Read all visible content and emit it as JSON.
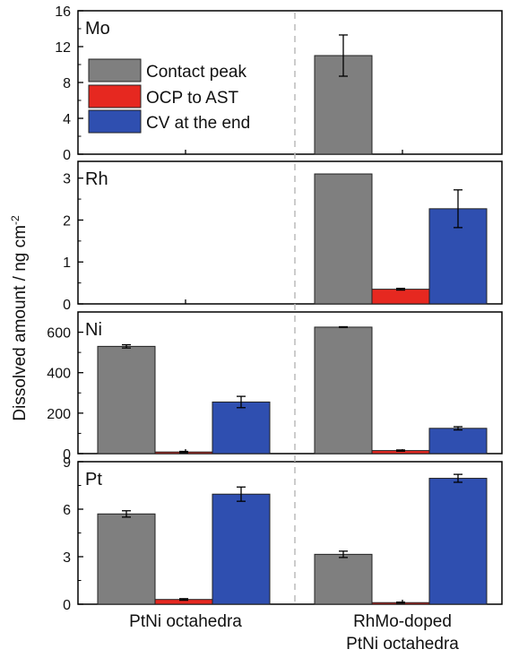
{
  "colors": {
    "series": [
      "#7f7f7f",
      "#e62820",
      "#2f4fb0"
    ],
    "axis": "#000000",
    "separator": "#bbbbbb"
  },
  "legend": [
    "Contact peak",
    "OCP to AST",
    "CV at the end"
  ],
  "ylabel": "Dissolved amount / ng cm",
  "ylabel_superscript": "-2",
  "groups": [
    "PtNi octahedra",
    "RhMo-doped PtNi octahedra"
  ],
  "group_label_lines": [
    [
      "PtNi octahedra"
    ],
    [
      "RhMo-doped",
      "PtNi octahedra"
    ]
  ],
  "chart_data": [
    {
      "type": "bar",
      "label": "Mo",
      "categories": [
        "PtNi octahedra",
        "RhMo-doped PtNi octahedra"
      ],
      "series": [
        {
          "name": "Contact peak",
          "values": [
            null,
            11.0
          ],
          "errors": [
            null,
            2.3
          ]
        },
        {
          "name": "OCP to AST",
          "values": [
            null,
            null
          ],
          "errors": [
            null,
            null
          ]
        },
        {
          "name": "CV at the end",
          "values": [
            null,
            null
          ],
          "errors": [
            null,
            null
          ]
        }
      ],
      "ylim": [
        0,
        16
      ],
      "yticks": [
        0,
        4,
        8,
        12,
        16
      ],
      "ytick_labels": [
        "0",
        "4",
        "8",
        "12",
        "16"
      ],
      "legend_position": "upper-left"
    },
    {
      "type": "bar",
      "label": "Rh",
      "categories": [
        "PtNi octahedra",
        "RhMo-doped PtNi octahedra"
      ],
      "series": [
        {
          "name": "Contact peak",
          "values": [
            null,
            3.1
          ],
          "errors": [
            null,
            0.0
          ]
        },
        {
          "name": "OCP to AST",
          "values": [
            null,
            0.35
          ],
          "errors": [
            null,
            0.02
          ]
        },
        {
          "name": "CV at the end",
          "values": [
            null,
            2.27
          ],
          "errors": [
            null,
            0.45
          ]
        }
      ],
      "ylim": [
        0,
        3.4
      ],
      "yticks": [
        0,
        1,
        2,
        3
      ],
      "ytick_labels": [
        "0",
        "1",
        "2",
        "3"
      ]
    },
    {
      "type": "bar",
      "label": "Ni",
      "categories": [
        "PtNi octahedra",
        "RhMo-doped PtNi octahedra"
      ],
      "series": [
        {
          "name": "Contact peak",
          "values": [
            530,
            625
          ],
          "errors": [
            8,
            2
          ]
        },
        {
          "name": "OCP to AST",
          "values": [
            8,
            15
          ],
          "errors": [
            3,
            3
          ]
        },
        {
          "name": "CV at the end",
          "values": [
            255,
            125
          ],
          "errors": [
            28,
            8
          ]
        }
      ],
      "ylim": [
        0,
        700
      ],
      "yticks": [
        0,
        200,
        400,
        600
      ],
      "ytick_labels": [
        "0",
        "200",
        "400",
        "600"
      ]
    },
    {
      "type": "bar",
      "label": "Pt",
      "categories": [
        "PtNi octahedra",
        "RhMo-doped PtNi octahedra"
      ],
      "series": [
        {
          "name": "Contact peak",
          "values": [
            5.7,
            3.15
          ],
          "errors": [
            0.2,
            0.2
          ]
        },
        {
          "name": "OCP to AST",
          "values": [
            0.3,
            0.1
          ],
          "errors": [
            0.05,
            0.03
          ]
        },
        {
          "name": "CV at the end",
          "values": [
            6.95,
            7.95
          ],
          "errors": [
            0.45,
            0.25
          ]
        }
      ],
      "ylim": [
        0,
        9
      ],
      "yticks": [
        0,
        3,
        6,
        9
      ],
      "ytick_labels": [
        "0",
        "3",
        "6",
        "9"
      ]
    }
  ]
}
